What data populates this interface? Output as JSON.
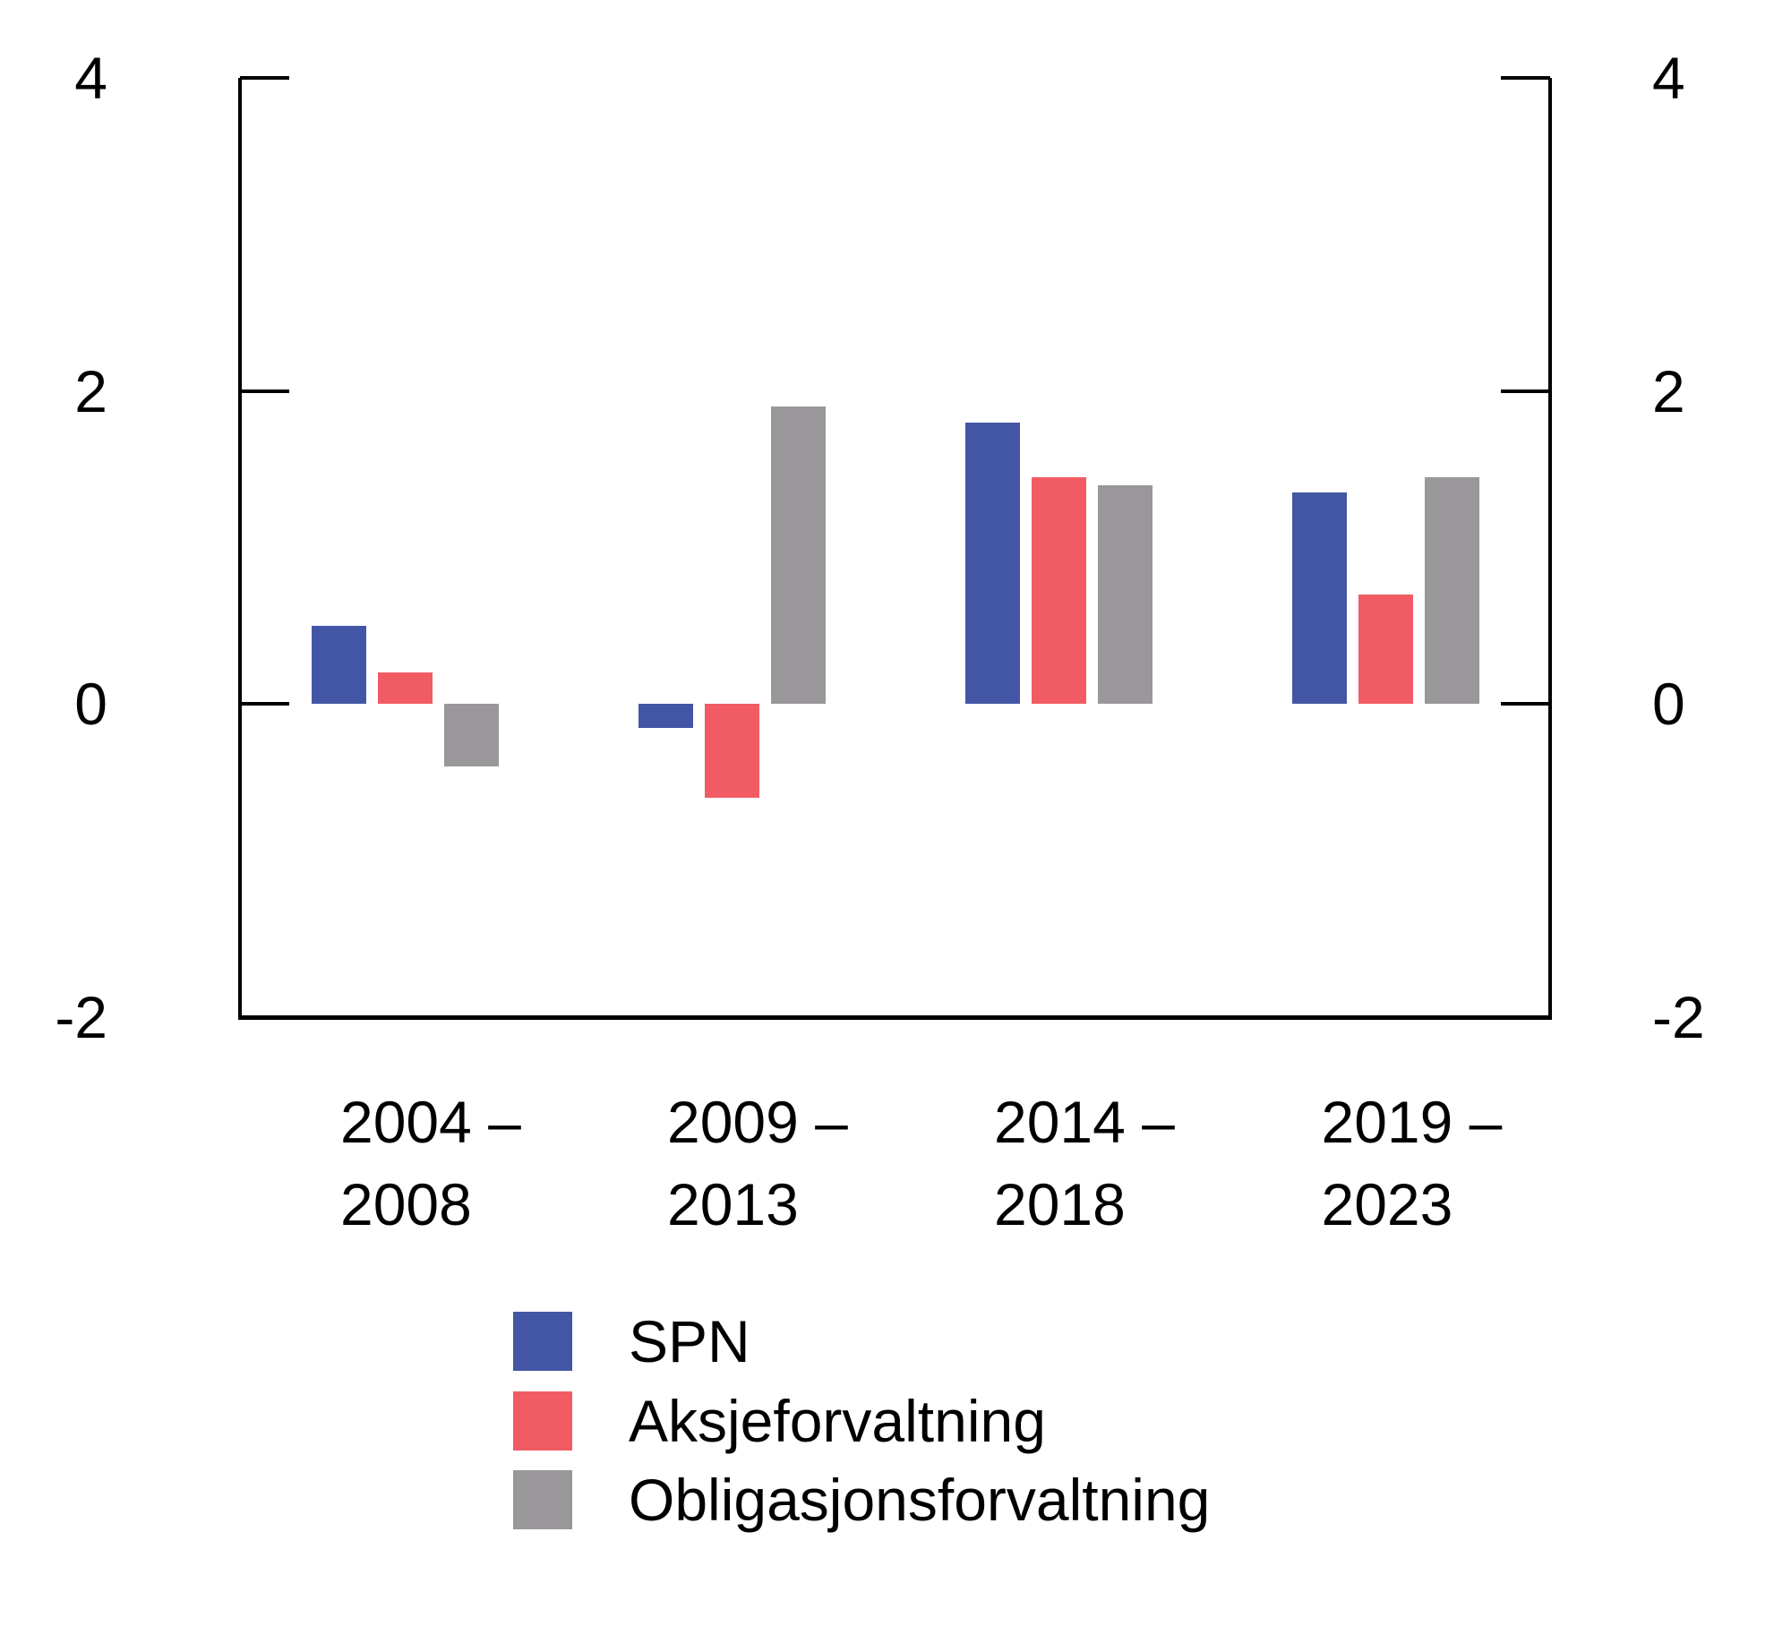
{
  "chart_data": {
    "type": "bar",
    "title": "",
    "categories": [
      {
        "line1": "2004 –",
        "line2": "2008"
      },
      {
        "line1": "2009 –",
        "line2": "2013"
      },
      {
        "line1": "2014 –",
        "line2": "2018"
      },
      {
        "line1": "2019 –",
        "line2": "2023"
      }
    ],
    "series": [
      {
        "name": "SPN",
        "color": "#4356A5",
        "values": [
          0.5,
          -0.15,
          1.8,
          1.35
        ]
      },
      {
        "name": "Aksjeforvaltning",
        "color": "#F15C64",
        "values": [
          0.2,
          -0.6,
          1.45,
          0.7
        ]
      },
      {
        "name": "Obligasjonsforvaltning",
        "color": "#999799",
        "values": [
          -0.4,
          1.9,
          1.4,
          1.45
        ]
      }
    ],
    "ylim": [
      -2,
      4
    ],
    "yticks": [
      {
        "value": 4,
        "label": "4"
      },
      {
        "value": 2,
        "label": "2"
      },
      {
        "value": 0,
        "label": "0"
      },
      {
        "value": -2,
        "label": "-2"
      }
    ],
    "y_axis_sides": [
      "left",
      "right"
    ],
    "grid": false,
    "legend_position": "bottom-left",
    "axis_color": "#000000",
    "background": "#FFFFFF"
  },
  "legend": {
    "items": [
      {
        "label": "SPN",
        "color": "#4356A5"
      },
      {
        "label": "Aksjeforvaltning",
        "color": "#F15C64"
      },
      {
        "label": "Obligasjonsforvaltning",
        "color": "#999799"
      }
    ]
  }
}
